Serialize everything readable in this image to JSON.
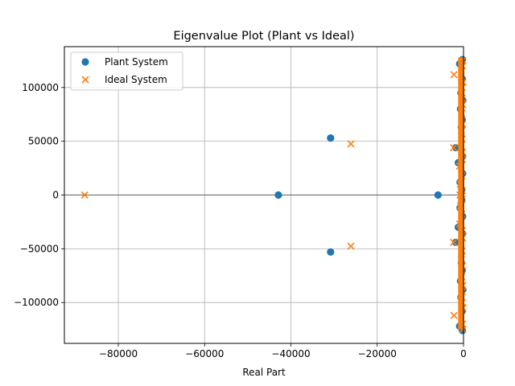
{
  "chart_data": {
    "type": "scatter",
    "title": "Eigenvalue Plot (Plant vs Ideal)",
    "xlabel": "Real Part",
    "ylabel": "",
    "xlim": [
      -92500,
      0
    ],
    "ylim": [
      -138000,
      138000
    ],
    "xticks": [
      -80000,
      -60000,
      -40000,
      -20000,
      0
    ],
    "xtick_labels": [
      "−80000",
      "−60000",
      "−40000",
      "−20000",
      "0"
    ],
    "yticks": [
      -100000,
      -50000,
      0,
      50000,
      100000
    ],
    "ytick_labels": [
      "−100000",
      "−50000",
      "0",
      "50000",
      "100000"
    ],
    "grid": true,
    "zero_line": true,
    "legend": "top-left",
    "series": [
      {
        "name": "Plant System",
        "marker": "circle",
        "color": "#1f77b4",
        "points": [
          [
            -42900,
            0
          ],
          [
            -30800,
            53000
          ],
          [
            -30800,
            -53000
          ],
          [
            -5900,
            0
          ],
          [
            -1800,
            44000
          ],
          [
            -1800,
            -44000
          ],
          [
            -1200,
            30000
          ],
          [
            -1200,
            -30000
          ],
          [
            -900,
            122000
          ],
          [
            -900,
            -122000
          ],
          [
            -700,
            80000
          ],
          [
            -700,
            -80000
          ],
          [
            -600,
            95000
          ],
          [
            -600,
            -95000
          ],
          [
            -500,
            63000
          ],
          [
            -500,
            -63000
          ],
          [
            -800,
            12000
          ],
          [
            -800,
            -12000
          ],
          [
            -400,
            5000
          ],
          [
            -400,
            -5000
          ],
          [
            -300,
            108000
          ],
          [
            -300,
            -108000
          ],
          [
            -200,
            20000
          ],
          [
            -200,
            -20000
          ],
          [
            -300,
            70000
          ],
          [
            -300,
            -70000
          ],
          [
            -200,
            36000
          ],
          [
            -200,
            -36000
          ],
          [
            -250,
            126000
          ],
          [
            -250,
            -126000
          ],
          [
            -150,
            88000
          ],
          [
            -150,
            -88000
          ]
        ]
      },
      {
        "name": "Ideal System",
        "marker": "x",
        "color": "#ff7f0e",
        "points": [
          [
            -87800,
            0
          ],
          [
            -26100,
            47500
          ],
          [
            -26100,
            -47500
          ],
          [
            -2200,
            112000
          ],
          [
            -2200,
            -112000
          ],
          [
            -2300,
            44000
          ],
          [
            -2300,
            -44000
          ],
          [
            -800,
            0
          ],
          [
            -700,
            10000
          ],
          [
            -700,
            -10000
          ],
          [
            -900,
            27000
          ],
          [
            -900,
            -27000
          ],
          [
            -500,
            60000
          ],
          [
            -500,
            -60000
          ],
          [
            -400,
            76000
          ],
          [
            -400,
            -76000
          ],
          [
            -300,
            90000
          ],
          [
            -300,
            -90000
          ],
          [
            -300,
            100000
          ],
          [
            -300,
            -100000
          ],
          [
            -200,
            120000
          ],
          [
            -200,
            -120000
          ],
          [
            -150,
            125000
          ],
          [
            -150,
            -125000
          ],
          [
            -400,
            18000
          ],
          [
            -400,
            -18000
          ],
          [
            -250,
            33000
          ],
          [
            -250,
            -33000
          ],
          [
            -300,
            52000
          ],
          [
            -300,
            -52000
          ],
          [
            -200,
            66000
          ],
          [
            -200,
            -66000
          ],
          [
            -150,
            84000
          ],
          [
            -150,
            -84000
          ],
          [
            -100,
            105000
          ],
          [
            -100,
            -105000
          ],
          [
            -300,
            4000
          ],
          [
            -300,
            -4000
          ],
          [
            -200,
            40000
          ],
          [
            -200,
            -40000
          ]
        ],
        "dense_band": {
          "x_range": [
            -500,
            0
          ],
          "y_range": [
            -125000,
            128000
          ]
        }
      }
    ]
  }
}
